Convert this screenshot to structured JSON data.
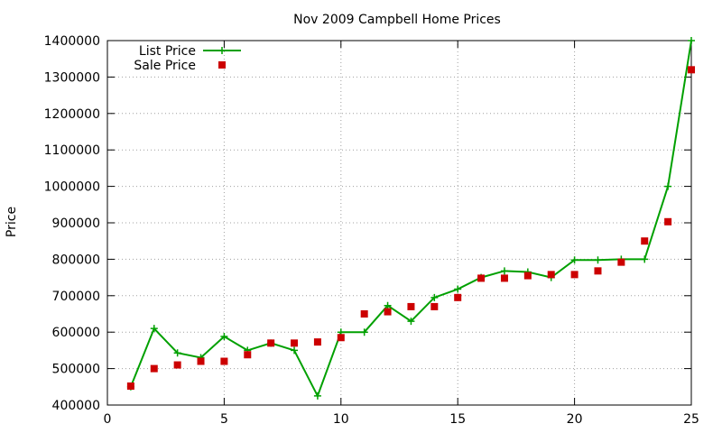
{
  "chart_data": {
    "type": "line",
    "title": "Nov 2009 Campbell Home Prices",
    "xlabel": "",
    "ylabel": "Price",
    "xlim": [
      0,
      25
    ],
    "ylim": [
      400000,
      1400000
    ],
    "x_ticks": [
      0,
      5,
      10,
      15,
      20,
      25
    ],
    "y_ticks": [
      400000,
      500000,
      600000,
      700000,
      800000,
      900000,
      1000000,
      1100000,
      1200000,
      1300000,
      1400000
    ],
    "grid": true,
    "legend_position": "top-left",
    "x": [
      1,
      2,
      3,
      4,
      5,
      6,
      7,
      8,
      9,
      10,
      11,
      12,
      13,
      14,
      15,
      16,
      17,
      18,
      19,
      20,
      21,
      22,
      23,
      24,
      25
    ],
    "series": [
      {
        "name": "List Price",
        "style": "lines+points",
        "marker": "plus",
        "color": "#00a000",
        "values": [
          450000,
          610000,
          543000,
          530000,
          588000,
          550000,
          570000,
          550000,
          425000,
          600000,
          600000,
          673000,
          630000,
          695000,
          718000,
          750000,
          768000,
          765000,
          750000,
          798000,
          798000,
          800000,
          800000,
          1000000,
          1400000
        ]
      },
      {
        "name": "Sale Price",
        "style": "points",
        "marker": "square",
        "color": "#cc0000",
        "values": [
          452000,
          500000,
          510000,
          520000,
          520000,
          538000,
          570000,
          570000,
          573000,
          585000,
          650000,
          656000,
          670000,
          670000,
          695000,
          748000,
          748000,
          755000,
          758000,
          758000,
          768000,
          792000,
          850000,
          903000,
          1320000
        ]
      }
    ]
  }
}
